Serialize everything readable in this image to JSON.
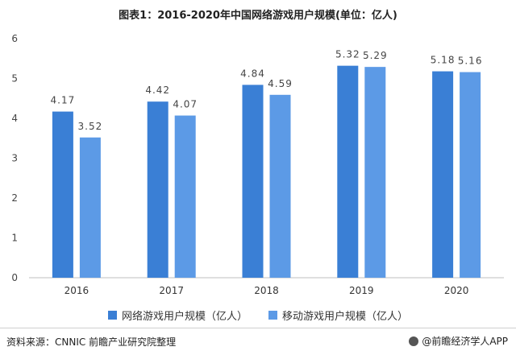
{
  "header": {
    "title": "图表1：2016-2020年中国网络游戏用户规模(单位：亿人)"
  },
  "chart_data": {
    "type": "bar",
    "categories": [
      "2016",
      "2017",
      "2018",
      "2019",
      "2020"
    ],
    "series": [
      {
        "name": "网络游戏用户规模（亿人）",
        "values": [
          4.17,
          4.42,
          4.84,
          5.32,
          5.18
        ],
        "labels": [
          "4.17",
          "4.42",
          "4.84",
          "5.32",
          "5.18"
        ],
        "color": "#3a7fd5"
      },
      {
        "name": "移动游戏用户规模（亿人）",
        "values": [
          3.52,
          4.07,
          4.59,
          5.29,
          5.16
        ],
        "labels": [
          "3.52",
          "4.07",
          "4.59",
          "5.29",
          "5.16"
        ],
        "color": "#5c9ae6"
      }
    ],
    "ylim": [
      0,
      6
    ],
    "yticks": [
      0,
      1,
      2,
      3,
      4,
      5,
      6
    ],
    "legend": "bottom",
    "grid": false
  },
  "footer": {
    "source": "资料来源：CNNIC 前瞻产业研究院整理",
    "brand": "@前瞻经济学人APP"
  }
}
